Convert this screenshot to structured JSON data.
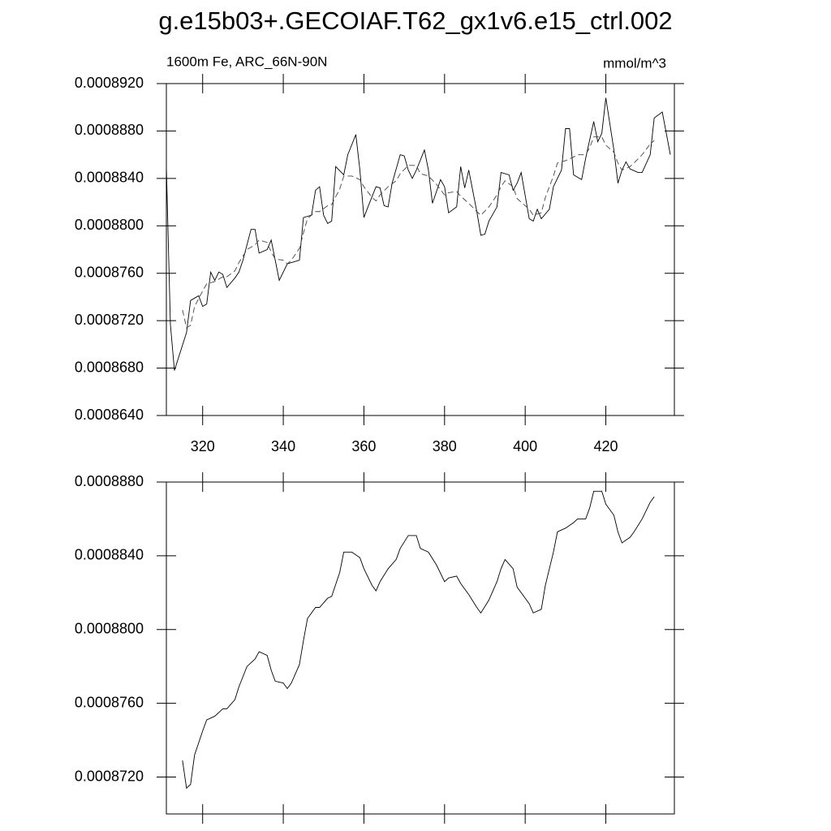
{
  "title": "g.e15b03+.GECOIAF.T62_gx1v6.e15_ctrl.002",
  "chart_data": [
    {
      "type": "line",
      "left_subtitle": "1600m Fe, ARC_66N-90N",
      "right_subtitle": "mmol/m^3",
      "xlim": [
        311,
        437
      ],
      "xticks": [
        320,
        340,
        360,
        380,
        400,
        420
      ],
      "show_xtick_labels": true,
      "ylim": [
        0.000864,
        0.000892
      ],
      "yticks": [
        {
          "value": 0.000864,
          "label": "0.0008640"
        },
        {
          "value": 0.000868,
          "label": "0.0008680"
        },
        {
          "value": 0.000872,
          "label": "0.0008720"
        },
        {
          "value": 0.000876,
          "label": "0.0008760"
        },
        {
          "value": 0.00088,
          "label": "0.0008800"
        },
        {
          "value": 0.000884,
          "label": "0.0008840"
        },
        {
          "value": 0.000888,
          "label": "0.0008880"
        },
        {
          "value": 0.000892,
          "label": "0.0008920"
        }
      ],
      "series": [
        {
          "color": "#000000",
          "style": "solid",
          "x": [
            311,
            312,
            313,
            316,
            317,
            319,
            320,
            321,
            322,
            323,
            324,
            325,
            326,
            328,
            329,
            330,
            332,
            333,
            334,
            336,
            337,
            338,
            339,
            341,
            342,
            344,
            345,
            347,
            348,
            349,
            350,
            351,
            352,
            353,
            355,
            356,
            358,
            359,
            360,
            361,
            363,
            364,
            365,
            366,
            367,
            369,
            370,
            371,
            372,
            373,
            375,
            376,
            377,
            379,
            380,
            381,
            383,
            384,
            385,
            386,
            388,
            389,
            390,
            391,
            393,
            394,
            396,
            397,
            398,
            399,
            401,
            402,
            403,
            404,
            406,
            407,
            409,
            410,
            411,
            412,
            414,
            415,
            417,
            418,
            419,
            420,
            422,
            423,
            424,
            425,
            426,
            428,
            429,
            431,
            432,
            434,
            436
          ],
          "values": [
            0.000885,
            0.0008717,
            0.0008678,
            0.000871,
            0.0008737,
            0.0008741,
            0.0008732,
            0.0008734,
            0.0008761,
            0.0008754,
            0.0008761,
            0.0008759,
            0.0008748,
            0.0008756,
            0.0008761,
            0.0008771,
            0.0008797,
            0.0008797,
            0.0008777,
            0.000878,
            0.0008788,
            0.0008771,
            0.0008754,
            0.0008768,
            0.0008769,
            0.0008771,
            0.0008807,
            0.0008809,
            0.000883,
            0.0008833,
            0.0008809,
            0.0008802,
            0.0008804,
            0.000885,
            0.0008843,
            0.000886,
            0.0008877,
            0.0008847,
            0.0008807,
            0.0008816,
            0.0008833,
            0.0008832,
            0.0008817,
            0.0008816,
            0.0008836,
            0.000886,
            0.0008859,
            0.0008847,
            0.000884,
            0.0008847,
            0.0008864,
            0.0008847,
            0.0008819,
            0.0008839,
            0.0008833,
            0.0008811,
            0.0008816,
            0.000885,
            0.0008832,
            0.0008847,
            0.0008812,
            0.0008792,
            0.0008793,
            0.0008804,
            0.0008816,
            0.0008845,
            0.0008843,
            0.000883,
            0.0008836,
            0.0008845,
            0.0008806,
            0.0008804,
            0.0008814,
            0.0008806,
            0.0008814,
            0.0008833,
            0.0008847,
            0.0008882,
            0.0008882,
            0.0008843,
            0.0008839,
            0.0008857,
            0.0008888,
            0.0008871,
            0.0008878,
            0.0008908,
            0.0008864,
            0.0008836,
            0.0008847,
            0.0008854,
            0.0008848,
            0.0008845,
            0.0008845,
            0.000886,
            0.0008891,
            0.0008896,
            0.000886
          ]
        },
        {
          "color": "#444444",
          "style": "dashed",
          "x": [
            315,
            316,
            317,
            318,
            320,
            321,
            323,
            325,
            326,
            328,
            329,
            331,
            333,
            334,
            336,
            337,
            338,
            340,
            341,
            342,
            344,
            345,
            346,
            348,
            349,
            351,
            352,
            354,
            355,
            357,
            359,
            360,
            362,
            363,
            364,
            366,
            368,
            369,
            371,
            373,
            374,
            376,
            378,
            380,
            381,
            383,
            384,
            386,
            388,
            389,
            391,
            393,
            394,
            395,
            397,
            398,
            400,
            401,
            402,
            404,
            405,
            407,
            408,
            410,
            412,
            413,
            415,
            416,
            417,
            419,
            420,
            422,
            423,
            424,
            426,
            427,
            429,
            431,
            432
          ],
          "values": [
            0.0008729,
            0.0008714,
            0.0008716,
            0.0008732,
            0.0008745,
            0.0008751,
            0.0008753,
            0.0008757,
            0.0008757,
            0.0008762,
            0.0008769,
            0.000878,
            0.0008784,
            0.0008788,
            0.0008786,
            0.0008778,
            0.0008772,
            0.0008771,
            0.0008768,
            0.0008771,
            0.0008781,
            0.0008794,
            0.0008806,
            0.0008812,
            0.0008812,
            0.0008817,
            0.0008818,
            0.0008831,
            0.0008842,
            0.0008842,
            0.0008839,
            0.0008833,
            0.0008824,
            0.0008821,
            0.0008826,
            0.0008833,
            0.0008838,
            0.0008844,
            0.0008851,
            0.0008851,
            0.0008844,
            0.0008842,
            0.0008835,
            0.0008826,
            0.0008828,
            0.0008829,
            0.0008825,
            0.0008819,
            0.0008812,
            0.0008809,
            0.0008816,
            0.0008826,
            0.0008833,
            0.0008838,
            0.0008833,
            0.0008823,
            0.0008817,
            0.0008814,
            0.0008809,
            0.0008811,
            0.0008824,
            0.0008842,
            0.0008853,
            0.0008855,
            0.0008858,
            0.000886,
            0.000886,
            0.0008866,
            0.0008875,
            0.0008875,
            0.0008868,
            0.0008862,
            0.0008853,
            0.0008847,
            0.000885,
            0.0008853,
            0.000886,
            0.0008869,
            0.0008872
          ]
        }
      ]
    },
    {
      "type": "line",
      "xlim": [
        311,
        437
      ],
      "xticks": [
        320,
        340,
        360,
        380,
        400,
        420
      ],
      "show_xtick_labels": false,
      "ylim": [
        0.00087,
        0.000888
      ],
      "yticks": [
        {
          "value": 0.000872,
          "label": "0.0008720"
        },
        {
          "value": 0.000876,
          "label": "0.0008760"
        },
        {
          "value": 0.00088,
          "label": "0.0008800"
        },
        {
          "value": 0.000884,
          "label": "0.0008840"
        },
        {
          "value": 0.000888,
          "label": "0.0008880"
        }
      ],
      "series": [
        {
          "color": "#000000",
          "style": "solid",
          "x": [
            315,
            316,
            317,
            318,
            320,
            321,
            323,
            325,
            326,
            328,
            329,
            331,
            333,
            334,
            336,
            337,
            338,
            340,
            341,
            342,
            344,
            345,
            346,
            348,
            349,
            351,
            352,
            354,
            355,
            357,
            359,
            360,
            362,
            363,
            364,
            366,
            368,
            369,
            371,
            373,
            374,
            376,
            378,
            380,
            381,
            383,
            384,
            386,
            388,
            389,
            391,
            393,
            394,
            395,
            397,
            398,
            400,
            401,
            402,
            404,
            405,
            407,
            408,
            410,
            412,
            413,
            415,
            416,
            417,
            419,
            420,
            422,
            423,
            424,
            426,
            427,
            429,
            431,
            432
          ],
          "values": [
            0.0008729,
            0.0008714,
            0.0008716,
            0.0008732,
            0.0008745,
            0.0008751,
            0.0008753,
            0.0008757,
            0.0008757,
            0.0008762,
            0.0008769,
            0.000878,
            0.0008784,
            0.0008788,
            0.0008786,
            0.0008778,
            0.0008772,
            0.0008771,
            0.0008768,
            0.0008771,
            0.0008781,
            0.0008794,
            0.0008806,
            0.0008812,
            0.0008812,
            0.0008817,
            0.0008818,
            0.0008831,
            0.0008842,
            0.0008842,
            0.0008839,
            0.0008833,
            0.0008824,
            0.0008821,
            0.0008826,
            0.0008833,
            0.0008838,
            0.0008844,
            0.0008851,
            0.0008851,
            0.0008844,
            0.0008842,
            0.0008835,
            0.0008826,
            0.0008828,
            0.0008829,
            0.0008825,
            0.0008819,
            0.0008812,
            0.0008809,
            0.0008816,
            0.0008826,
            0.0008833,
            0.0008838,
            0.0008833,
            0.0008823,
            0.0008817,
            0.0008814,
            0.0008809,
            0.0008811,
            0.0008824,
            0.0008842,
            0.0008853,
            0.0008855,
            0.0008858,
            0.000886,
            0.000886,
            0.0008866,
            0.0008875,
            0.0008875,
            0.0008868,
            0.0008862,
            0.0008853,
            0.0008847,
            0.000885,
            0.0008853,
            0.000886,
            0.0008869,
            0.0008872
          ]
        }
      ]
    }
  ]
}
